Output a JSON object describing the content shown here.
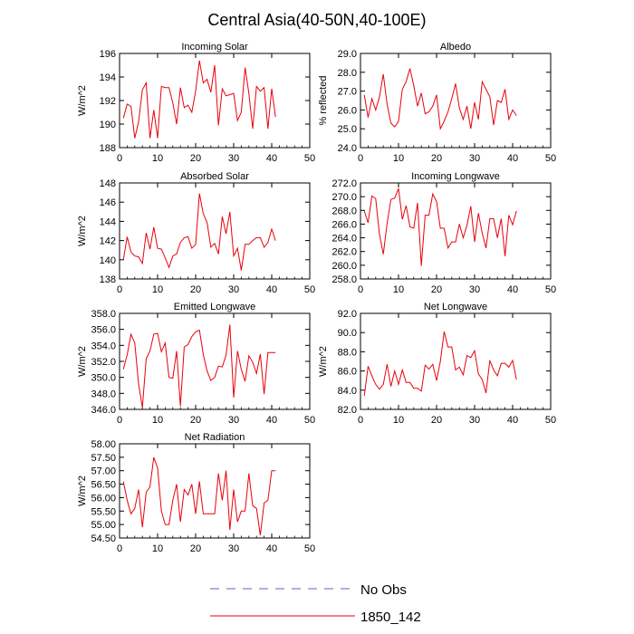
{
  "title": "Central Asia(40-50N,40-100E)",
  "series_color": "#e8000b",
  "obs_color": "#6a5acd",
  "legend": [
    {
      "label": "No Obs",
      "style": "dashed"
    },
    {
      "label": "1850_142",
      "style": "solid"
    }
  ],
  "chart_data": [
    {
      "type": "line",
      "title": "Incoming Solar",
      "ylabel": "W/m^2",
      "xlim": [
        0,
        50
      ],
      "ylim": [
        188,
        196
      ],
      "xticks": [
        0,
        10,
        20,
        30,
        40,
        50
      ],
      "yticks": [
        188,
        190,
        192,
        194,
        196
      ],
      "ytick_labels": [
        "188",
        "190",
        "192",
        "194",
        "196"
      ],
      "series": [
        {
          "name": "1850_142",
          "x": [
            1,
            2,
            3,
            4,
            5,
            6,
            7,
            8,
            9,
            10,
            11,
            12,
            13,
            14,
            15,
            16,
            17,
            18,
            19,
            20,
            21,
            22,
            23,
            24,
            25,
            26,
            27,
            28,
            29,
            30,
            31,
            32,
            33,
            34,
            35,
            36,
            37,
            38,
            39,
            40,
            41
          ],
          "values": [
            190.5,
            191.7,
            191.5,
            188.8,
            190.2,
            192.9,
            193.5,
            188.8,
            191.2,
            188.8,
            193.2,
            193.1,
            193.1,
            191.8,
            190.0,
            193.1,
            191.4,
            191.6,
            191.0,
            192.8,
            195.4,
            193.5,
            193.8,
            192.7,
            195.0,
            189.9,
            193.0,
            192.4,
            192.5,
            192.6,
            190.3,
            191.0,
            194.8,
            192.6,
            189.6,
            193.2,
            192.8,
            193.1,
            189.6,
            193.0,
            190.6
          ]
        }
      ]
    },
    {
      "type": "line",
      "title": "Albedo",
      "ylabel": "% reflected",
      "xlim": [
        0,
        50
      ],
      "ylim": [
        24,
        29
      ],
      "xticks": [
        0,
        10,
        20,
        30,
        40,
        50
      ],
      "yticks": [
        24,
        25,
        26,
        27,
        28,
        29
      ],
      "ytick_labels": [
        "24.0",
        "25.0",
        "26.0",
        "27.0",
        "28.0",
        "29.0"
      ],
      "series": [
        {
          "name": "1850_142",
          "x": [
            1,
            2,
            3,
            4,
            5,
            6,
            7,
            8,
            9,
            10,
            11,
            12,
            13,
            14,
            15,
            16,
            17,
            18,
            19,
            20,
            21,
            22,
            23,
            24,
            25,
            26,
            27,
            28,
            29,
            30,
            31,
            32,
            33,
            34,
            35,
            36,
            37,
            38,
            39,
            40,
            41
          ],
          "values": [
            26.8,
            25.6,
            26.6,
            26.0,
            26.7,
            27.9,
            26.3,
            25.3,
            25.1,
            25.4,
            27.1,
            27.5,
            28.2,
            27.3,
            26.2,
            26.9,
            25.8,
            25.9,
            26.2,
            26.8,
            25.0,
            25.4,
            25.9,
            26.6,
            27.4,
            26.1,
            25.5,
            26.2,
            25.0,
            26.4,
            25.5,
            27.5,
            27.1,
            26.7,
            25.2,
            26.5,
            26.4,
            27.1,
            25.5,
            26.0,
            25.7
          ]
        }
      ]
    },
    {
      "type": "line",
      "title": "Absorbed Solar",
      "ylabel": "W/m^2",
      "xlim": [
        0,
        50
      ],
      "ylim": [
        138,
        148
      ],
      "xticks": [
        0,
        10,
        20,
        30,
        40,
        50
      ],
      "yticks": [
        138,
        140,
        142,
        144,
        146,
        148
      ],
      "ytick_labels": [
        "138",
        "140",
        "142",
        "144",
        "146",
        "148"
      ],
      "series": [
        {
          "name": "1850_142",
          "x": [
            1,
            2,
            3,
            4,
            5,
            6,
            7,
            8,
            9,
            10,
            11,
            12,
            13,
            14,
            15,
            16,
            17,
            18,
            19,
            20,
            21,
            22,
            23,
            24,
            25,
            26,
            27,
            28,
            29,
            30,
            31,
            32,
            33,
            34,
            35,
            36,
            37,
            38,
            39,
            40,
            41
          ],
          "values": [
            140.0,
            142.4,
            140.8,
            140.4,
            140.3,
            139.6,
            142.8,
            141.1,
            143.4,
            141.2,
            141.1,
            140.2,
            139.2,
            140.4,
            140.6,
            141.8,
            142.3,
            142.4,
            141.2,
            141.6,
            146.9,
            144.8,
            143.9,
            141.3,
            141.7,
            140.6,
            144.5,
            142.7,
            145.0,
            140.4,
            141.2,
            138.9,
            141.6,
            141.6,
            142.0,
            142.3,
            142.3,
            141.3,
            141.8,
            143.2,
            142.0
          ]
        }
      ]
    },
    {
      "type": "line",
      "title": "Incoming Longwave",
      "ylabel": "",
      "xlim": [
        0,
        50
      ],
      "ylim": [
        258,
        272
      ],
      "xticks": [
        0,
        10,
        20,
        30,
        40,
        50
      ],
      "yticks": [
        258,
        260,
        262,
        264,
        266,
        268,
        270,
        272
      ],
      "ytick_labels": [
        "258.0",
        "260.0",
        "262.0",
        "264.0",
        "266.0",
        "268.0",
        "270.0",
        "272.0"
      ],
      "series": [
        {
          "name": "1850_142",
          "x": [
            1,
            2,
            3,
            4,
            5,
            6,
            7,
            8,
            9,
            10,
            11,
            12,
            13,
            14,
            15,
            16,
            17,
            18,
            19,
            20,
            21,
            22,
            23,
            24,
            25,
            26,
            27,
            28,
            29,
            30,
            31,
            32,
            33,
            34,
            35,
            36,
            37,
            38,
            39,
            40,
            41
          ],
          "values": [
            267.9,
            266.2,
            270.1,
            269.7,
            264.5,
            261.6,
            266.1,
            269.6,
            269.8,
            271.2,
            266.7,
            268.7,
            265.6,
            265.4,
            269.1,
            259.9,
            267.3,
            267.3,
            270.4,
            269.3,
            265.4,
            265.4,
            262.5,
            263.4,
            263.4,
            266.0,
            264.0,
            265.8,
            268.6,
            263.4,
            267.6,
            264.7,
            262.5,
            266.8,
            266.8,
            264.0,
            266.8,
            261.3,
            267.3,
            265.9,
            267.9
          ]
        }
      ]
    },
    {
      "type": "line",
      "title": "Emitted Longwave",
      "ylabel": "W/m^2",
      "xlim": [
        0,
        50
      ],
      "ylim": [
        346,
        358
      ],
      "xticks": [
        0,
        10,
        20,
        30,
        40,
        50
      ],
      "yticks": [
        346,
        348,
        350,
        352,
        354,
        356,
        358
      ],
      "ytick_labels": [
        "346.0",
        "348.0",
        "350.0",
        "352.0",
        "354.0",
        "356.0",
        "358.0"
      ],
      "series": [
        {
          "name": "1850_142",
          "x": [
            1,
            2,
            3,
            4,
            5,
            6,
            7,
            8,
            9,
            10,
            11,
            12,
            13,
            14,
            15,
            16,
            17,
            18,
            19,
            20,
            21,
            22,
            23,
            24,
            25,
            26,
            27,
            28,
            29,
            30,
            31,
            32,
            33,
            34,
            35,
            36,
            37,
            38,
            39,
            40,
            41
          ],
          "values": [
            351.0,
            352.8,
            355.4,
            354.3,
            349.2,
            346.2,
            352.3,
            353.3,
            355.4,
            355.5,
            353.2,
            354.3,
            350.0,
            349.9,
            353.3,
            346.4,
            353.8,
            354.1,
            355.1,
            355.7,
            355.9,
            352.9,
            350.8,
            349.6,
            350.0,
            351.4,
            351.3,
            352.8,
            356.6,
            347.5,
            353.3,
            351.0,
            349.5,
            352.7,
            351.9,
            350.5,
            352.9,
            347.9,
            353.1,
            353.1,
            353.1
          ]
        }
      ]
    },
    {
      "type": "line",
      "title": "Net Longwave",
      "ylabel": "W/m^2",
      "xlim": [
        0,
        50
      ],
      "ylim": [
        82,
        92
      ],
      "xticks": [
        0,
        10,
        20,
        30,
        40,
        50
      ],
      "yticks": [
        82,
        84,
        86,
        88,
        90,
        92
      ],
      "ytick_labels": [
        "82.0",
        "84.0",
        "86.0",
        "88.0",
        "90.0",
        "92.0"
      ],
      "series": [
        {
          "name": "1850_142",
          "x": [
            1,
            2,
            3,
            4,
            5,
            6,
            7,
            8,
            9,
            10,
            11,
            12,
            13,
            14,
            15,
            16,
            17,
            18,
            19,
            20,
            21,
            22,
            23,
            24,
            25,
            26,
            27,
            28,
            29,
            30,
            31,
            32,
            33,
            34,
            35,
            36,
            37,
            38,
            39,
            40,
            41
          ],
          "values": [
            83.4,
            86.5,
            85.5,
            84.6,
            84.1,
            84.6,
            86.7,
            84.4,
            86.0,
            84.6,
            86.1,
            84.8,
            84.8,
            84.2,
            84.2,
            83.9,
            86.6,
            86.2,
            86.7,
            85.0,
            87.0,
            90.1,
            88.5,
            88.5,
            86.1,
            86.4,
            85.6,
            87.6,
            87.4,
            88.1,
            85.7,
            85.1,
            83.7,
            87.1,
            86.1,
            85.5,
            86.8,
            86.8,
            86.4,
            87.1,
            85.1
          ]
        }
      ]
    },
    {
      "type": "line",
      "title": "Net Radiation",
      "ylabel": "W/m^2",
      "xlim": [
        0,
        50
      ],
      "ylim": [
        54.5,
        58
      ],
      "xticks": [
        0,
        10,
        20,
        30,
        40,
        50
      ],
      "yticks": [
        54.5,
        55,
        55.5,
        56,
        56.5,
        57,
        57.5,
        58
      ],
      "ytick_labels": [
        "54.50",
        "55.00",
        "55.50",
        "56.00",
        "56.50",
        "57.00",
        "57.50",
        "58.00"
      ],
      "series": [
        {
          "name": "1850_142",
          "x": [
            1,
            2,
            3,
            4,
            5,
            6,
            7,
            8,
            9,
            10,
            11,
            12,
            13,
            14,
            15,
            16,
            17,
            18,
            19,
            20,
            21,
            22,
            23,
            24,
            25,
            26,
            27,
            28,
            29,
            30,
            31,
            32,
            33,
            34,
            35,
            36,
            37,
            38,
            39,
            40,
            41
          ],
          "values": [
            56.6,
            55.9,
            55.4,
            55.6,
            56.3,
            54.9,
            56.2,
            56.4,
            57.5,
            57.1,
            55.5,
            55.0,
            55.0,
            55.9,
            56.5,
            55.1,
            56.3,
            56.1,
            56.5,
            55.4,
            56.6,
            55.4,
            55.4,
            55.4,
            55.4,
            56.9,
            55.9,
            57.0,
            54.8,
            56.3,
            55.1,
            55.5,
            55.5,
            56.9,
            55.7,
            55.6,
            54.6,
            55.8,
            55.9,
            57.0,
            57.0
          ]
        }
      ]
    }
  ]
}
